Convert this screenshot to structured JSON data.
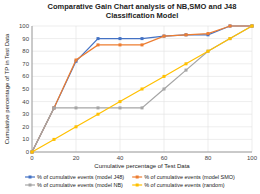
{
  "chart_data": {
    "type": "line",
    "title": "Comparative Gain Chart analysis of NB,SMO and J48\nClassification Model",
    "x_label": "Cumulative percentage of Test Data",
    "y_label": "Cumulative percentage of TP in Test Data",
    "x": [
      0,
      10,
      20,
      30,
      40,
      50,
      60,
      70,
      80,
      90,
      100
    ],
    "series": [
      {
        "name": "% of cumulative events (model J48)",
        "color": "#4472c4",
        "values": [
          0,
          35,
          72,
          90,
          90,
          90,
          92,
          93,
          93,
          100,
          100
        ]
      },
      {
        "name": "% of cumulative events (model SMO)",
        "color": "#ed7d31",
        "values": [
          0,
          35,
          73,
          85,
          85,
          85,
          92,
          93,
          94,
          100,
          100
        ]
      },
      {
        "name": "% of cumulative events (model NB)",
        "color": "#a5a5a5",
        "values": [
          0,
          35,
          35,
          35,
          35,
          35,
          50,
          65,
          80,
          90,
          100
        ]
      },
      {
        "name": "% of cumulative events (random)",
        "color": "#ffc000",
        "values": [
          0,
          10,
          20,
          30,
          40,
          50,
          60,
          70,
          80,
          90,
          100
        ]
      }
    ],
    "xlim": [
      0,
      100
    ],
    "ylim": [
      0,
      100
    ],
    "xticks": [
      0,
      20,
      40,
      60,
      80,
      100
    ],
    "yticks": [
      0,
      10,
      20,
      30,
      40,
      50,
      60,
      70,
      80,
      90,
      100
    ],
    "grid": true,
    "marker": "square",
    "legend": "bottom"
  }
}
